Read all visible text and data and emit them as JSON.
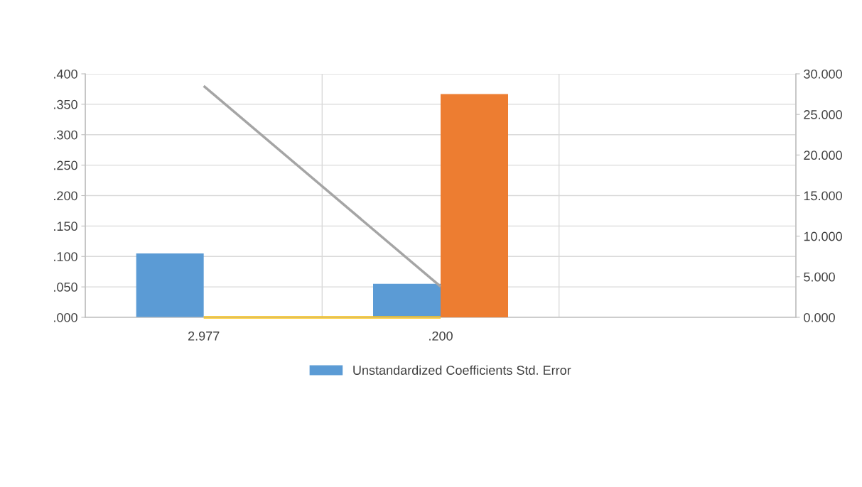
{
  "chart_data": {
    "type": "bar",
    "categories": [
      "2.977",
      ".200",
      null
    ],
    "series": [
      {
        "name": "Unstandardized Coefficients Std. Error",
        "color": "#5b9bd5",
        "values": [
          0.105,
          0.055,
          null
        ]
      },
      {
        "color": "#ed7d31",
        "values": [
          null,
          27.5,
          null
        ],
        "axis": "y2"
      },
      {
        "type": "line",
        "color": "#a5a5a5",
        "values": [
          28.5,
          3.8,
          null
        ],
        "axis": "y2"
      },
      {
        "type": "line",
        "color": "#ffc000",
        "values": [
          0.0,
          0.0,
          null
        ]
      }
    ],
    "ylim": [
      0,
      0.4
    ],
    "yticks": [
      {
        "value": 0,
        "label": ".000"
      },
      {
        "value": 0.05,
        "label": ".050"
      },
      {
        "value": 0.1,
        "label": ".100"
      },
      {
        "value": 0.15,
        "label": ".150"
      },
      {
        "value": 0.2,
        "label": ".200"
      },
      {
        "value": 0.25,
        "label": ".250"
      },
      {
        "value": 0.3,
        "label": ".300"
      },
      {
        "value": 0.35,
        "label": ".350"
      },
      {
        "value": 0.4,
        "label": ".400"
      }
    ],
    "y2lim": [
      0,
      30
    ],
    "y2ticks": [
      {
        "value": 0,
        "label": "0.000"
      },
      {
        "value": 5,
        "label": "5.000"
      },
      {
        "value": 10,
        "label": "10.000"
      },
      {
        "value": 15,
        "label": "15.000"
      },
      {
        "value": 20,
        "label": "20.000"
      },
      {
        "value": 25,
        "label": "25.000"
      },
      {
        "value": 30,
        "label": "30.000"
      }
    ],
    "grid": true,
    "legend": "bottom"
  }
}
